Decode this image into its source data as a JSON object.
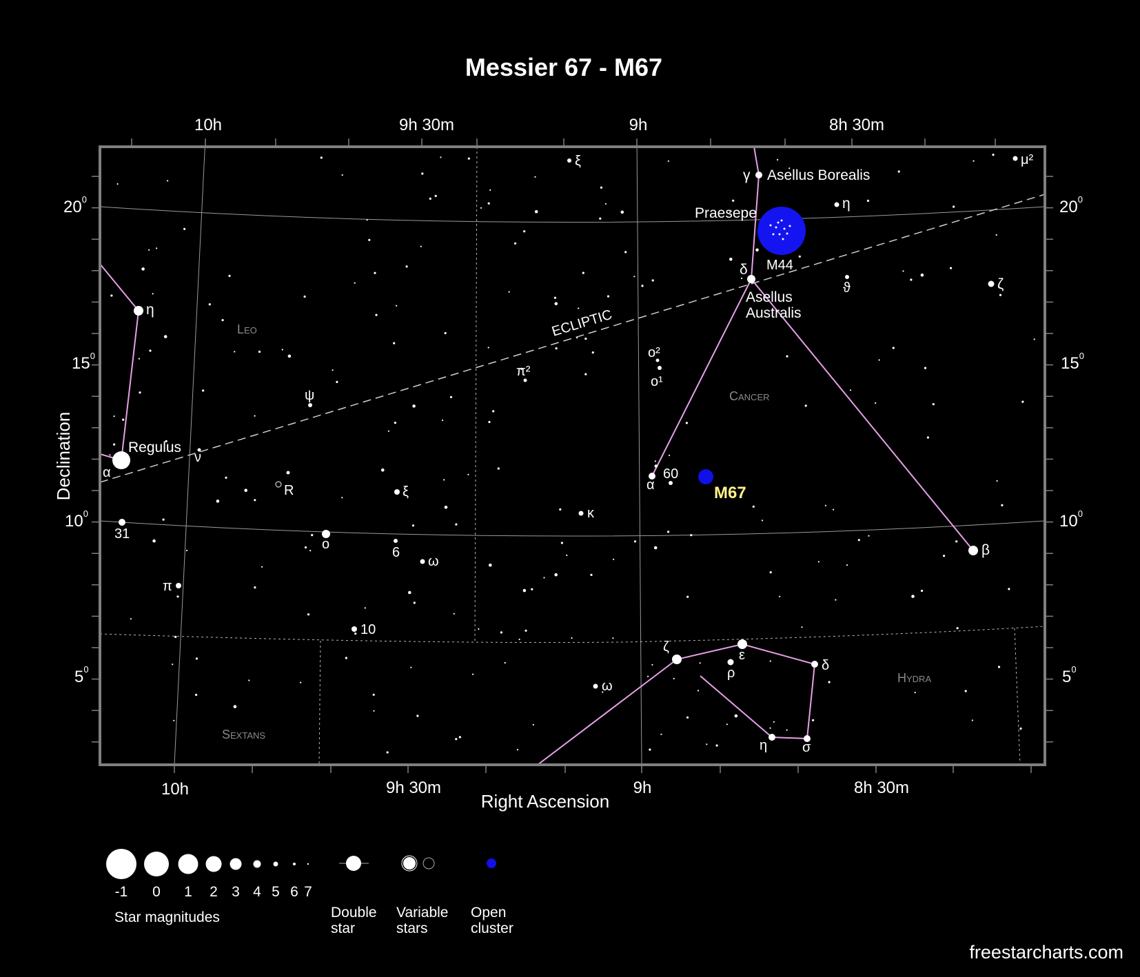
{
  "title": "Messier 67 - M67",
  "axes": {
    "x_label": "Right Ascension",
    "y_label": "Declination",
    "top_ticks": [
      "10h",
      "9h 30m",
      "9h",
      "8h 30m"
    ],
    "bottom_ticks": [
      "10h",
      "9h 30m",
      "9h",
      "8h 30m"
    ],
    "dec_ticks": [
      {
        "deg": "20",
        "sup": "0"
      },
      {
        "deg": "15",
        "sup": "0"
      },
      {
        "deg": "10",
        "sup": "0"
      },
      {
        "deg": "5",
        "sup": "0"
      }
    ]
  },
  "constellations": [
    "Leo",
    "Cancer",
    "Hydra",
    "Sextans"
  ],
  "ecliptic_label": "ECLIPTIC",
  "target": {
    "label": "M67",
    "color": "#fff38a",
    "marker_color": "#1010e8"
  },
  "cluster_m44": {
    "label": "M44",
    "name": "Praesepe",
    "color": "#1414f0"
  },
  "named_stars": [
    "Asellus Borealis",
    "Asellus Australis",
    "Regulus"
  ],
  "star_labels": {
    "xi_top": "ξ",
    "mu2": "μ²",
    "gamma": "γ",
    "eta_cnc": "η",
    "delta_cnc": "δ",
    "theta_cnc": "ϑ",
    "zeta_cnc": "ζ",
    "o2": "ο²",
    "o1": "ο¹",
    "pi2": "π²",
    "psi": "ψ",
    "nu": "ν",
    "eta_leo": "η",
    "alpha_leo": "α",
    "R": "R",
    "xi_leo": "ξ",
    "kappa": "κ",
    "alpha_cnc": "α",
    "sixty": "60",
    "thirtyone": "31",
    "omicron": "ο",
    "six": "6",
    "omega_leo": "ω",
    "pi_leo": "π",
    "ten": "10",
    "beta_cnc": "β",
    "zeta_hya": "ζ",
    "eps_hya": "ε",
    "rho_hya": "ρ",
    "delta_hya": "δ",
    "omega_hya": "ω",
    "eta_hya": "η",
    "sigma_hya": "σ"
  },
  "legend": {
    "magnitudes": [
      "-1",
      "0",
      "1",
      "2",
      "3",
      "4",
      "5",
      "6",
      "7"
    ],
    "magnitudes_title": "Star magnitudes",
    "double_star": [
      "Double",
      "star"
    ],
    "variable_stars": [
      "Variable",
      "stars"
    ],
    "open_cluster": [
      "Open",
      "cluster"
    ]
  },
  "colors": {
    "background": "#000000",
    "frame": "#808080",
    "constellation_lines": "#e7a0e7",
    "cluster_blue": "#1010e8"
  },
  "credit": "freestarcharts.com"
}
